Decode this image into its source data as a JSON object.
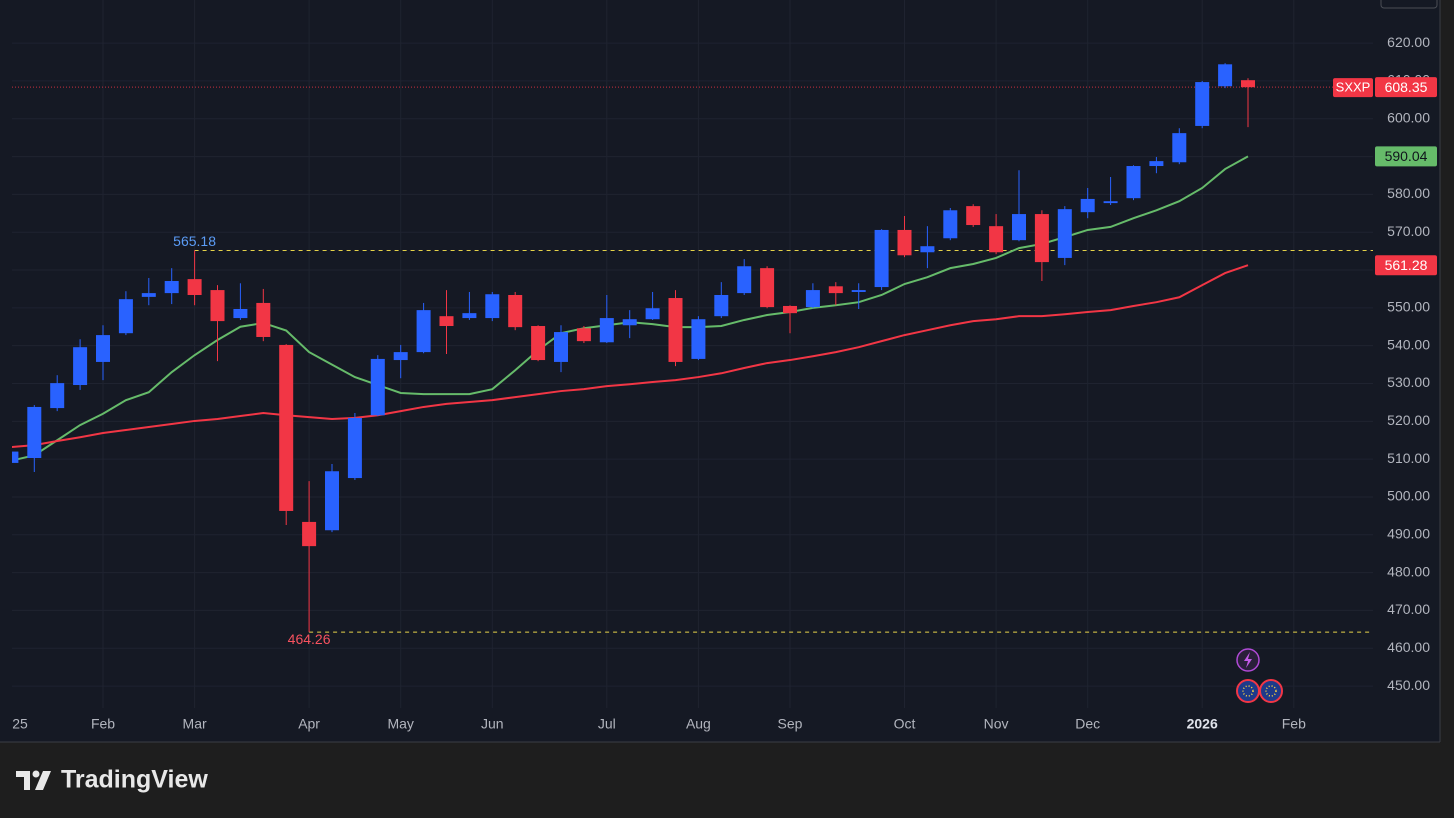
{
  "chart_data": {
    "type": "candlestick",
    "name": "SXXP",
    "up_color": "#2962ff",
    "down_color": "#f23645",
    "categories": [
      "25",
      null,
      null,
      null,
      "Feb",
      null,
      null,
      null,
      "Mar",
      null,
      null,
      null,
      null,
      "Apr",
      null,
      null,
      null,
      "May",
      null,
      null,
      null,
      "Jun",
      null,
      null,
      null,
      null,
      "Jul",
      null,
      null,
      null,
      "Aug",
      null,
      null,
      null,
      "Sep",
      null,
      null,
      null,
      null,
      "Oct",
      null,
      null,
      null,
      "Nov",
      null,
      null,
      null,
      "Dec",
      null,
      null,
      null,
      null,
      "2026",
      null,
      null,
      null,
      "Feb",
      null,
      null,
      null
    ],
    "open": [
      509,
      510.3,
      523.5,
      529.6,
      535.7,
      543.3,
      552.9,
      553.9,
      557.6,
      554.7,
      547.3,
      551.3,
      540.2,
      493.4,
      491.2,
      505.0,
      521.6,
      536.2,
      538.3,
      547.8,
      547.3,
      547.3,
      553.4,
      545.2,
      535.7,
      544.6,
      540.9,
      545.4,
      547.0,
      552.6,
      536.5,
      547.8,
      553.9,
      560.5,
      550.5,
      550.2,
      555.7,
      554.2,
      555.5,
      570.6,
      564.7,
      568.4,
      576.9,
      571.6,
      567.9,
      574.8,
      563.2,
      575.3,
      577.7,
      579.0,
      587.5,
      588.5,
      598.1,
      608.6,
      610.2,
      null,
      null,
      null,
      null,
      null
    ],
    "high": [
      513,
      524.3,
      532.2,
      541.7,
      545.4,
      554.4,
      557.9,
      560.5,
      565.18,
      556.0,
      556.5,
      555.0,
      540.4,
      504.2,
      508.7,
      522.2,
      537.5,
      540.2,
      551.3,
      554.7,
      554.2,
      554.2,
      554.2,
      545.4,
      545.4,
      545.2,
      553.4,
      549.4,
      554.2,
      554.7,
      547.8,
      556.8,
      562.9,
      561.0,
      550.7,
      556.5,
      556.8,
      556.5,
      570.8,
      574.3,
      571.6,
      576.4,
      577.4,
      574.8,
      586.4,
      575.8,
      576.9,
      581.7,
      584.6,
      587.7,
      589.9,
      597.5,
      610.0,
      614.7,
      610.7,
      null,
      null,
      null,
      null,
      null
    ],
    "low": [
      508,
      506.6,
      522.7,
      528.3,
      530.9,
      542.8,
      550.7,
      551.0,
      550.7,
      535.9,
      546.8,
      541.2,
      492.6,
      464.26,
      490.7,
      504.5,
      521.4,
      531.4,
      538.0,
      537.8,
      546.8,
      546.5,
      544.1,
      535.9,
      533.0,
      540.7,
      540.7,
      542.0,
      546.8,
      534.6,
      536.2,
      547.3,
      553.4,
      549.9,
      543.3,
      549.9,
      550.7,
      549.7,
      554.7,
      563.4,
      560.5,
      567.9,
      571.4,
      564.2,
      567.6,
      557.1,
      561.3,
      573.7,
      577.2,
      578.5,
      585.6,
      588.0,
      597.5,
      608.1,
      597.8,
      null,
      null,
      null,
      null,
      null
    ],
    "close": [
      512,
      523.8,
      530.1,
      539.6,
      542.8,
      552.3,
      553.9,
      557.1,
      553.4,
      546.5,
      549.7,
      542.3,
      496.3,
      487.0,
      506.8,
      520.9,
      536.5,
      538.3,
      549.4,
      545.2,
      548.6,
      553.6,
      544.9,
      536.2,
      543.6,
      541.2,
      547.3,
      547.0,
      549.9,
      535.7,
      547.0,
      553.4,
      561.0,
      550.2,
      548.6,
      554.7,
      553.9,
      554.7,
      570.6,
      563.9,
      566.3,
      575.8,
      571.9,
      564.7,
      574.8,
      562.1,
      576.1,
      578.8,
      578.2,
      587.5,
      588.8,
      596.2,
      609.7,
      614.4,
      608.35,
      null,
      null,
      null,
      null,
      null
    ],
    "lines": [
      {
        "color": "#66bb6a",
        "values": [
          509.6,
          511,
          515,
          519,
          522,
          525.6,
          527.7,
          533,
          537.5,
          541.5,
          545,
          546,
          544,
          538.3,
          535,
          531.7,
          529.6,
          527.5,
          527.2,
          527.2,
          527.2,
          528.5,
          533.5,
          538.8,
          543.3,
          544.6,
          545.4,
          546.2,
          545.7,
          544.9,
          544.9,
          545.2,
          546.8,
          548.1,
          548.9,
          550.0,
          550.7,
          551.5,
          553.4,
          556.3,
          558.1,
          560.5,
          561.6,
          563.2,
          565.8,
          566.9,
          568.7,
          570.6,
          571.4,
          573.7,
          575.8,
          578.2,
          581.7,
          586.7,
          590.04,
          null,
          null,
          null,
          null,
          null
        ]
      },
      {
        "color": "#f23645",
        "values": [
          513.2,
          513.7,
          514.8,
          515.8,
          516.9,
          517.7,
          518.5,
          519.3,
          520.1,
          520.6,
          521.4,
          522.2,
          521.6,
          521.1,
          520.6,
          520.9,
          521.6,
          522.7,
          523.8,
          524.6,
          525.1,
          525.6,
          526.4,
          527.2,
          528.0,
          528.5,
          529.3,
          529.8,
          530.4,
          530.9,
          531.7,
          532.7,
          534.1,
          535.4,
          536.2,
          537.2,
          538.3,
          539.6,
          541.2,
          542.8,
          544.1,
          545.4,
          546.5,
          547.0,
          547.8,
          547.8,
          548.3,
          548.9,
          549.4,
          550.5,
          551.5,
          552.8,
          556.0,
          559.2,
          561.28,
          null,
          null,
          null,
          null,
          null
        ]
      }
    ],
    "ylim": [
      444.2,
      631.4
    ],
    "yticks": [
      {
        "value": 450,
        "label": "450.00"
      },
      {
        "value": 460,
        "label": "460.00"
      },
      {
        "value": 470,
        "label": "470.00"
      },
      {
        "value": 480,
        "label": "480.00"
      },
      {
        "value": 490,
        "label": "490.00"
      },
      {
        "value": 500,
        "label": "500.00"
      },
      {
        "value": 510,
        "label": "510.00"
      },
      {
        "value": 520,
        "label": "520.00"
      },
      {
        "value": 530,
        "label": "530.00"
      },
      {
        "value": 540,
        "label": "540.00"
      },
      {
        "value": 550,
        "label": "550.00"
      },
      {
        "value": 560,
        "label": "560.00"
      },
      {
        "value": 570,
        "label": "570.00"
      },
      {
        "value": 580,
        "label": "580.00"
      },
      {
        "value": 590,
        "label": "590.00"
      },
      {
        "value": 600,
        "label": "600.00"
      },
      {
        "value": 610,
        "label": "610.00"
      },
      {
        "value": 620,
        "label": "620.00"
      }
    ],
    "grid": true
  },
  "footer": {
    "brand": "TradingView"
  }
}
